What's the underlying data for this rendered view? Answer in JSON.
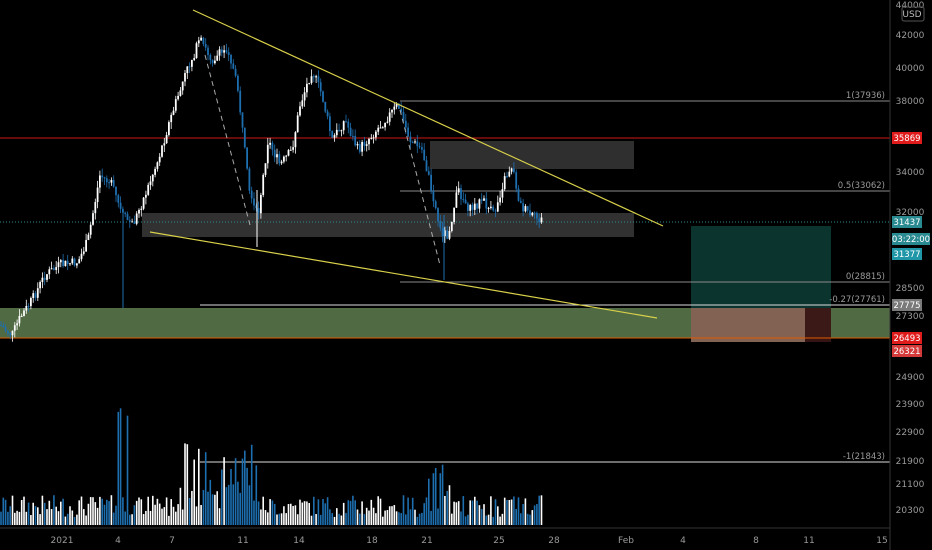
{
  "chart_data": {
    "type": "candlestick",
    "title": "",
    "currency": "USD",
    "price_ticks": [
      44000,
      42000,
      40000,
      38000,
      34000,
      32000,
      28500,
      27300
    ],
    "volume_ticks": [
      24900,
      23900,
      22900,
      21900,
      21100,
      20300
    ],
    "x_ticks": [
      "2021",
      "4",
      "7",
      "11",
      "14",
      "18",
      "21",
      "25",
      "28",
      "Feb",
      "4",
      "8",
      "11",
      "15"
    ],
    "price_tags": [
      {
        "id": "tag-resistance",
        "label": "35869",
        "value": 35869,
        "color": "#e01b1b"
      },
      {
        "id": "tag-last-price",
        "label": "31437",
        "value": 31437,
        "color": "#2a8a91"
      },
      {
        "id": "tag-countdown",
        "label": "03:22:00",
        "value": 31300,
        "color": "#2a8a91"
      },
      {
        "id": "tag-target",
        "label": "31377",
        "value": 31377,
        "color": "#1f97a8"
      },
      {
        "id": "tag-fib-ext",
        "label": "27775",
        "value": 27775,
        "color": "#7a7a7a"
      },
      {
        "id": "tag-stop",
        "label": "26493",
        "value": 26493,
        "color": "#e01b1b"
      },
      {
        "id": "tag-low",
        "label": "26321",
        "value": 26321,
        "color": "#d53a3a"
      }
    ],
    "fib_levels": [
      {
        "label": "1(37936)",
        "value": 37936
      },
      {
        "label": "0.5(33062)",
        "value": 33062
      },
      {
        "label": "0(28815)",
        "value": 28815
      },
      {
        "label": "-0.27(27761)",
        "value": 27761
      },
      {
        "label": "-1(21843)",
        "value": 21843
      }
    ],
    "horizontal_levels": [
      {
        "name": "resistance",
        "value": 35869,
        "color": "#d11616"
      },
      {
        "name": "support",
        "value": 26493,
        "color": "#e05a00"
      }
    ],
    "zones": [
      {
        "name": "demand-zone",
        "from": 26493,
        "to": 27550,
        "color": "#6b8e5a"
      },
      {
        "name": "consolidation-zone",
        "from": 31000,
        "to": 32100,
        "color": "#5a5a5a"
      },
      {
        "name": "supply-zone",
        "from": 34300,
        "to": 35800,
        "color": "#555555"
      }
    ],
    "trendlines": [
      {
        "name": "upper-wedge-line",
        "color": "#d8d04a"
      },
      {
        "name": "lower-wedge-line",
        "color": "#d8d04a"
      }
    ],
    "series": [
      {
        "name": "price",
        "color_up": "#ffffff",
        "color_down": "#1e6fb0"
      },
      {
        "name": "volume",
        "color_up": "#ffffff",
        "color_down": "#1e6fb0"
      }
    ]
  }
}
